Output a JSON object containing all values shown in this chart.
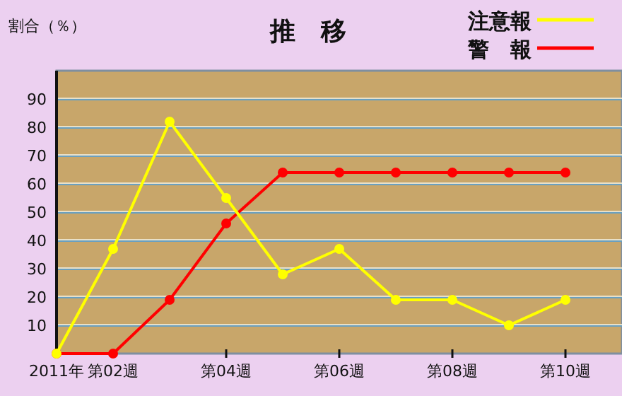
{
  "chart_data": {
    "type": "line",
    "title": "推　移",
    "ylabel": "割合（％）",
    "categories": [
      "2011年",
      "第02週",
      null,
      "第04週",
      null,
      "第06週",
      null,
      "第08週",
      null,
      "第10週"
    ],
    "series": [
      {
        "name": "注意報",
        "color": "#ffff00",
        "values": [
          0,
          37,
          82,
          55,
          28,
          37,
          19,
          19,
          10,
          19
        ]
      },
      {
        "name": "警　報",
        "color": "#ff0000",
        "values": [
          0,
          0,
          19,
          46,
          64,
          64,
          64,
          64,
          64,
          64
        ]
      }
    ],
    "ylim": [
      0,
      100
    ],
    "yticks": [
      10,
      20,
      30,
      40,
      50,
      60,
      70,
      80,
      90
    ],
    "grid": "y",
    "legend": "top right",
    "marker": "circle",
    "line_style": "solid"
  }
}
